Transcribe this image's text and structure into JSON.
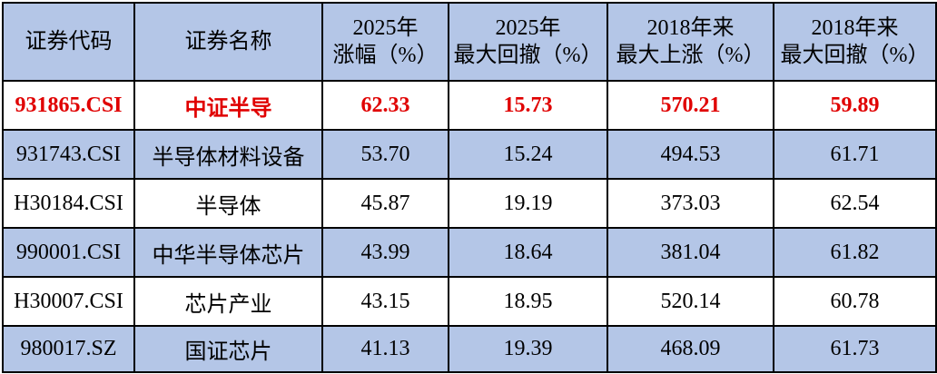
{
  "colors": {
    "header_bg": "#b4c6e7",
    "alt_row_bg": "#b4c6e7",
    "row_bg": "#ffffff",
    "border": "#000000",
    "bottom_edge": "#9aa3ad",
    "highlight_text": "#e00000",
    "text": "#000000"
  },
  "header": {
    "cols": [
      {
        "line1": "证券代码",
        "line2": ""
      },
      {
        "line1": "证券名称",
        "line2": ""
      },
      {
        "line1": "2025年",
        "line2": "涨幅（%）"
      },
      {
        "line1": "2025年",
        "line2": "最大回撤（%）"
      },
      {
        "line1": "2018年来",
        "line2": "最大上涨（%）"
      },
      {
        "line1": "2018年来",
        "line2": "最大回撤（%）"
      }
    ]
  },
  "rows": [
    {
      "code": "931865.CSI",
      "name": "中证半导",
      "gain2025": "62.33",
      "dd2025": "15.73",
      "rise2018": "570.21",
      "dd2018": "59.89"
    },
    {
      "code": "931743.CSI",
      "name": "半导体材料设备",
      "gain2025": "53.70",
      "dd2025": "15.24",
      "rise2018": "494.53",
      "dd2018": "61.71"
    },
    {
      "code": "H30184.CSI",
      "name": "半导体",
      "gain2025": "45.87",
      "dd2025": "19.19",
      "rise2018": "373.03",
      "dd2018": "62.54"
    },
    {
      "code": "990001.CSI",
      "name": "中华半导体芯片",
      "gain2025": "43.99",
      "dd2025": "18.64",
      "rise2018": "381.04",
      "dd2018": "61.82"
    },
    {
      "code": "H30007.CSI",
      "name": "芯片产业",
      "gain2025": "43.15",
      "dd2025": "18.95",
      "rise2018": "520.14",
      "dd2018": "60.78"
    },
    {
      "code": "980017.SZ",
      "name": "国证芯片",
      "gain2025": "41.13",
      "dd2025": "19.39",
      "rise2018": "468.09",
      "dd2018": "61.73"
    }
  ],
  "chart_data": {
    "type": "table",
    "columns": [
      "证券代码",
      "证券名称",
      "2025年涨幅（%）",
      "2025年最大回撤（%）",
      "2018年来最大上涨（%）",
      "2018年来最大回撤（%）"
    ],
    "rows": [
      [
        "931865.CSI",
        "中证半导",
        62.33,
        15.73,
        570.21,
        59.89
      ],
      [
        "931743.CSI",
        "半导体材料设备",
        53.7,
        15.24,
        494.53,
        61.71
      ],
      [
        "H30184.CSI",
        "半导体",
        45.87,
        19.19,
        373.03,
        62.54
      ],
      [
        "990001.CSI",
        "中华半导体芯片",
        43.99,
        18.64,
        381.04,
        61.82
      ],
      [
        "H30007.CSI",
        "芯片产业",
        43.15,
        18.95,
        520.14,
        60.78
      ],
      [
        "980017.SZ",
        "国证芯片",
        41.13,
        19.39,
        468.09,
        61.73
      ]
    ],
    "highlight": "first data row (931865.CSI 中证半导) shown in bold red",
    "row_striping": "white / light blue alternating, header light blue"
  }
}
